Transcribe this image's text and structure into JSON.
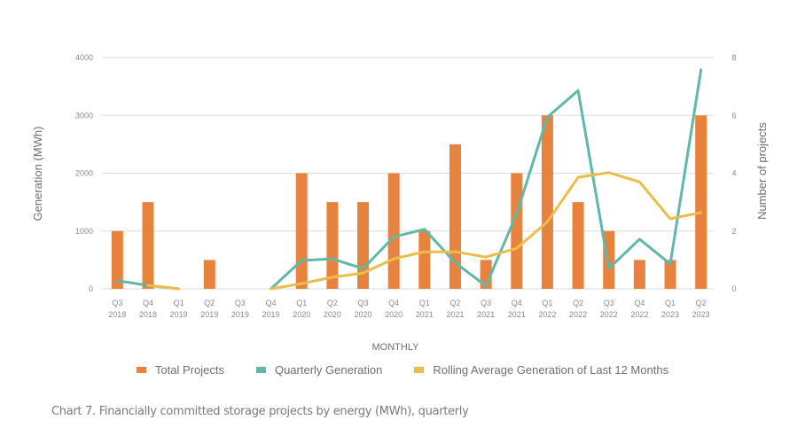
{
  "chart_data": {
    "type": "bar",
    "title": "",
    "caption": "Chart 7. Financially committed storage projects by energy (MWh), quarterly",
    "xlabel": "MONTHLY",
    "ylabel_left": "Generation (MWh)",
    "ylabel_right": "Number of projects",
    "ylim_left": [
      0,
      4000
    ],
    "yticks_left": [
      0,
      1000,
      2000,
      3000,
      4000
    ],
    "ylim_right": [
      0,
      8
    ],
    "yticks_right": [
      0,
      2,
      4,
      6,
      8
    ],
    "grid": true,
    "legend_position": "bottom",
    "categories": [
      [
        "Q3",
        "2018"
      ],
      [
        "Q4",
        "2018"
      ],
      [
        "Q1",
        "2019"
      ],
      [
        "Q2",
        "2019"
      ],
      [
        "Q3",
        "2019"
      ],
      [
        "Q4",
        "2019"
      ],
      [
        "Q1",
        "2020"
      ],
      [
        "Q2",
        "2020"
      ],
      [
        "Q3",
        "2020"
      ],
      [
        "Q4",
        "2020"
      ],
      [
        "Q1",
        "2021"
      ],
      [
        "Q2",
        "2021"
      ],
      [
        "Q3",
        "2021"
      ],
      [
        "Q4",
        "2021"
      ],
      [
        "Q1",
        "2022"
      ],
      [
        "Q2",
        "2022"
      ],
      [
        "Q3",
        "2022"
      ],
      [
        "Q4",
        "2022"
      ],
      [
        "Q1",
        "2023"
      ],
      [
        "Q2",
        "2023"
      ]
    ],
    "series": [
      {
        "name": "Total Projects",
        "type": "bar",
        "axis": "right",
        "color": "#e8823f",
        "values": [
          2,
          3,
          0,
          1,
          0,
          0,
          4,
          3,
          3,
          4,
          2,
          5,
          1,
          4,
          6,
          3,
          2,
          1,
          1,
          6
        ]
      },
      {
        "name": "Quarterly Generation",
        "type": "line",
        "axis": "left",
        "color": "#5fb8a8",
        "values": [
          140,
          60,
          0,
          null,
          null,
          0,
          490,
          520,
          350,
          900,
          1030,
          450,
          50,
          1300,
          2970,
          3430,
          350,
          860,
          430,
          3790
        ]
      },
      {
        "name": "Rolling Average Generation of Last 12 Months",
        "type": "line",
        "axis": "left",
        "color": "#ebbd4a",
        "values": [
          null,
          60,
          0,
          null,
          null,
          0,
          90,
          200,
          275,
          520,
          640,
          640,
          550,
          700,
          1160,
          1930,
          2010,
          1850,
          1210,
          1320
        ]
      }
    ]
  }
}
